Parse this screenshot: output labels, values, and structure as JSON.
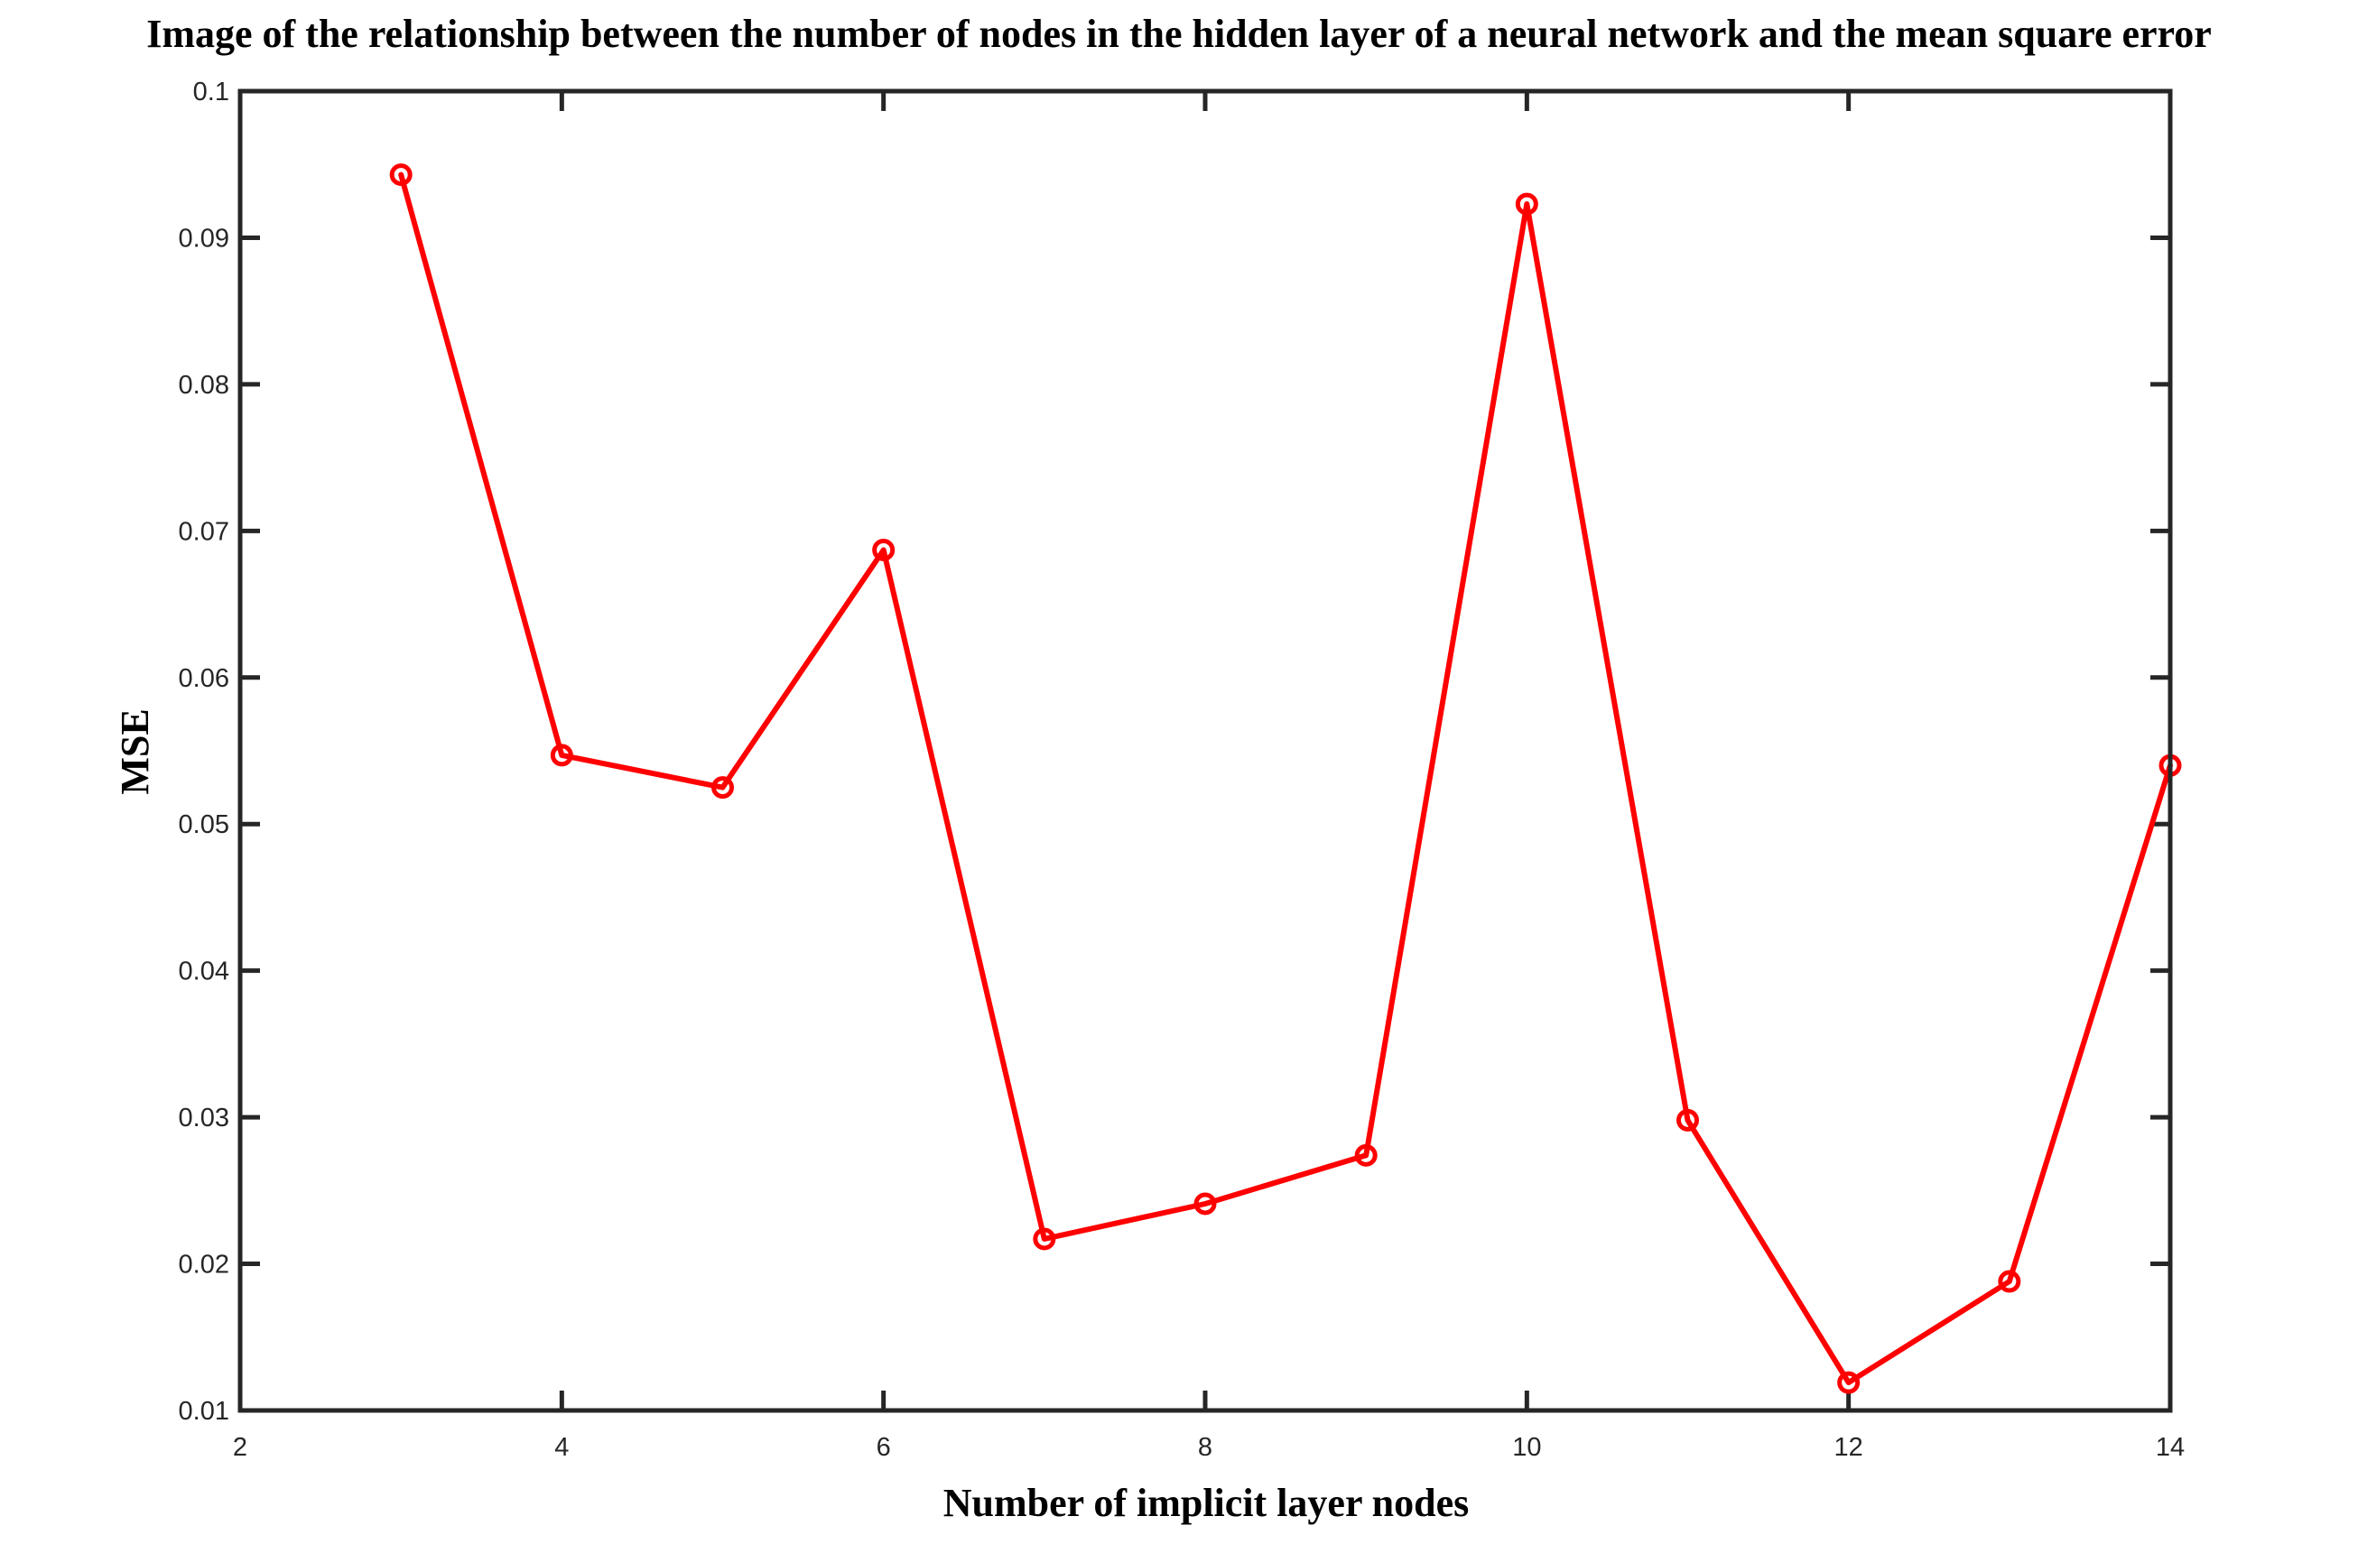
{
  "chart_data": {
    "type": "line",
    "title": "Image of the relationship between the number of nodes in the hidden layer of a neural network and the mean square error",
    "xlabel": "Number of implicit layer nodes",
    "ylabel": "MSE",
    "xlim": [
      2,
      14
    ],
    "ylim": [
      0.01,
      0.1
    ],
    "xticks": [
      2,
      4,
      6,
      8,
      10,
      12,
      14
    ],
    "xtick_labels": [
      "2",
      "4",
      "6",
      "8",
      "10",
      "12",
      "14"
    ],
    "yticks": [
      0.01,
      0.02,
      0.03,
      0.04,
      0.05,
      0.06,
      0.07,
      0.08,
      0.09,
      0.1
    ],
    "ytick_labels": [
      "0.01",
      "0.02",
      "0.03",
      "0.04",
      "0.05",
      "0.06",
      "0.07",
      "0.08",
      "0.09",
      "0.1"
    ],
    "grid": false,
    "marker": "circle",
    "series": [
      {
        "color": "#ff0000",
        "x": [
          3,
          4,
          5,
          6,
          7,
          8,
          9,
          10,
          11,
          12,
          13,
          14
        ],
        "y": [
          0.0943,
          0.0547,
          0.0525,
          0.0687,
          0.0217,
          0.0241,
          0.0274,
          0.0923,
          0.0298,
          0.0119,
          0.0188,
          0.054
        ]
      }
    ]
  }
}
